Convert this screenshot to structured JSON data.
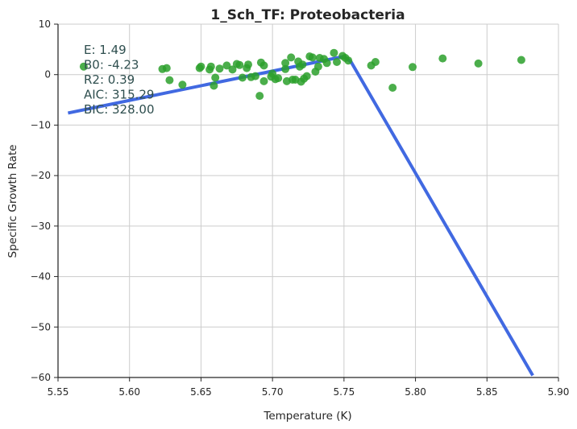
{
  "chart_data": {
    "type": "scatter",
    "title": "1_Sch_TF: Proteobacteria",
    "xlabel": "Temperature (K)",
    "ylabel": "Specific Growth Rate",
    "xlim": [
      5.55,
      5.9
    ],
    "ylim": [
      -60,
      10
    ],
    "x_ticks": [
      5.55,
      5.6,
      5.65,
      5.7,
      5.75,
      5.8,
      5.85,
      5.9
    ],
    "x_tick_labels": [
      "5.55",
      "5.60",
      "5.65",
      "5.70",
      "5.75",
      "5.80",
      "5.85",
      "5.90"
    ],
    "y_ticks": [
      10,
      0,
      -10,
      -20,
      -30,
      -40,
      -50,
      -60
    ],
    "y_tick_labels": [
      "10",
      "0",
      "−10",
      "−20",
      "−30",
      "−40",
      "−50",
      "−60"
    ],
    "grid": true,
    "colors": {
      "points": "#2ca02c",
      "fit_line": "#4169e1"
    },
    "annotations": [
      {
        "text": "E:  1.49"
      },
      {
        "text": "B0:  -4.23"
      },
      {
        "text": "R2:  0.39"
      },
      {
        "text": "AIC: 315.29"
      },
      {
        "text": "BIC: 328.00"
      }
    ],
    "fit_line": {
      "x": [
        5.557,
        5.75,
        5.755,
        5.882
      ],
      "y": [
        -7.6,
        3.6,
        2.5,
        -59.6
      ]
    },
    "points": [
      {
        "x": 5.568,
        "y": 1.6
      },
      {
        "x": 5.623,
        "y": 1.1
      },
      {
        "x": 5.626,
        "y": 1.3
      },
      {
        "x": 5.628,
        "y": -1.1
      },
      {
        "x": 5.637,
        "y": -2.0
      },
      {
        "x": 5.649,
        "y": 1.3
      },
      {
        "x": 5.65,
        "y": 1.6
      },
      {
        "x": 5.656,
        "y": 1.0
      },
      {
        "x": 5.657,
        "y": 1.6
      },
      {
        "x": 5.659,
        "y": -2.2
      },
      {
        "x": 5.66,
        "y": -0.6
      },
      {
        "x": 5.663,
        "y": 1.2
      },
      {
        "x": 5.668,
        "y": 1.8
      },
      {
        "x": 5.672,
        "y": 1.0
      },
      {
        "x": 5.675,
        "y": 2.1
      },
      {
        "x": 5.677,
        "y": 1.9
      },
      {
        "x": 5.679,
        "y": -0.6
      },
      {
        "x": 5.682,
        "y": 1.3
      },
      {
        "x": 5.683,
        "y": 2.0
      },
      {
        "x": 5.685,
        "y": -0.5
      },
      {
        "x": 5.688,
        "y": -0.3
      },
      {
        "x": 5.691,
        "y": -4.2
      },
      {
        "x": 5.692,
        "y": 2.4
      },
      {
        "x": 5.694,
        "y": 1.8
      },
      {
        "x": 5.694,
        "y": -1.3
      },
      {
        "x": 5.699,
        "y": -0.4
      },
      {
        "x": 5.7,
        "y": 0.2
      },
      {
        "x": 5.702,
        "y": -0.9
      },
      {
        "x": 5.704,
        "y": -0.7
      },
      {
        "x": 5.709,
        "y": 1.1
      },
      {
        "x": 5.709,
        "y": 2.3
      },
      {
        "x": 5.71,
        "y": -1.3
      },
      {
        "x": 5.713,
        "y": 3.4
      },
      {
        "x": 5.714,
        "y": -1.0
      },
      {
        "x": 5.716,
        "y": -1.0
      },
      {
        "x": 5.718,
        "y": 2.6
      },
      {
        "x": 5.719,
        "y": 1.6
      },
      {
        "x": 5.72,
        "y": -1.4
      },
      {
        "x": 5.721,
        "y": 2.0
      },
      {
        "x": 5.722,
        "y": -0.8
      },
      {
        "x": 5.724,
        "y": -0.3
      },
      {
        "x": 5.726,
        "y": 3.6
      },
      {
        "x": 5.728,
        "y": 3.4
      },
      {
        "x": 5.73,
        "y": 0.6
      },
      {
        "x": 5.732,
        "y": 1.6
      },
      {
        "x": 5.733,
        "y": 3.3
      },
      {
        "x": 5.736,
        "y": 3.1
      },
      {
        "x": 5.738,
        "y": 2.3
      },
      {
        "x": 5.743,
        "y": 4.3
      },
      {
        "x": 5.745,
        "y": 2.5
      },
      {
        "x": 5.749,
        "y": 3.7
      },
      {
        "x": 5.751,
        "y": 3.3
      },
      {
        "x": 5.753,
        "y": 2.8
      },
      {
        "x": 5.769,
        "y": 1.8
      },
      {
        "x": 5.772,
        "y": 2.5
      },
      {
        "x": 5.784,
        "y": -2.6
      },
      {
        "x": 5.798,
        "y": 1.5
      },
      {
        "x": 5.819,
        "y": 3.2
      },
      {
        "x": 5.844,
        "y": 2.2
      },
      {
        "x": 5.874,
        "y": 2.9
      }
    ]
  }
}
